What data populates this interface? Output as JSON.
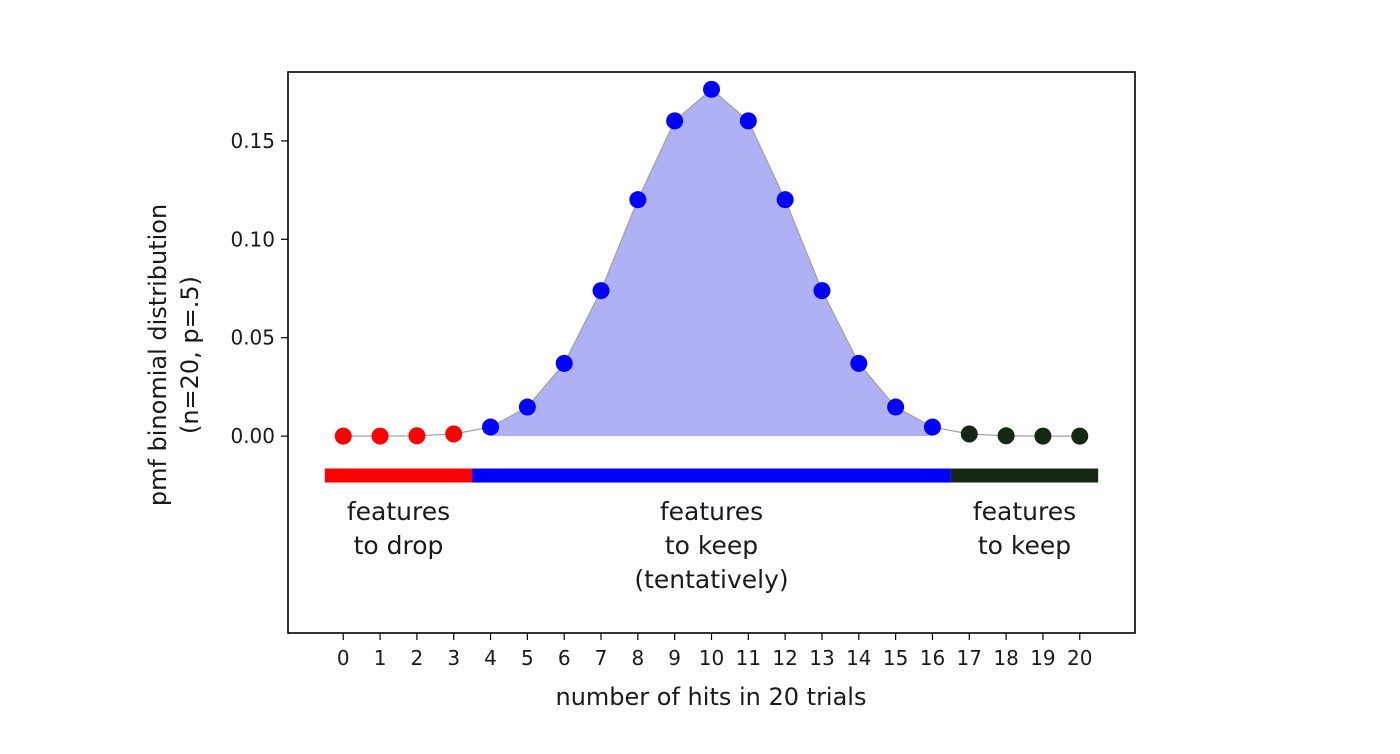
{
  "chart_data": {
    "type": "scatter",
    "title": "",
    "xlabel": "number of hits in 20 trials",
    "ylabel_lines": [
      "pmf binomial distribution",
      "(n=20, p=.5)"
    ],
    "x": [
      0,
      1,
      2,
      3,
      4,
      5,
      6,
      7,
      8,
      9,
      10,
      11,
      12,
      13,
      14,
      15,
      16,
      17,
      18,
      19,
      20
    ],
    "y": [
      1e-06,
      1.9e-05,
      0.000181,
      0.001087,
      0.004621,
      0.014786,
      0.036964,
      0.073929,
      0.120134,
      0.160179,
      0.176197,
      0.160179,
      0.120134,
      0.073929,
      0.036964,
      0.014786,
      0.004621,
      0.001087,
      0.000181,
      1.9e-05,
      1e-06
    ],
    "xticks": [
      "0",
      "1",
      "2",
      "3",
      "4",
      "5",
      "6",
      "7",
      "8",
      "9",
      "10",
      "11",
      "12",
      "13",
      "14",
      "15",
      "16",
      "17",
      "18",
      "19",
      "20"
    ],
    "yticks": [
      "0.00",
      "0.05",
      "0.10",
      "0.15"
    ],
    "ytick_values": [
      0,
      0.05,
      0.1,
      0.15
    ],
    "xlim": [
      -1.5,
      21.5
    ],
    "ylim": [
      -0.1,
      0.185
    ],
    "grid": false,
    "fill_range": [
      4,
      16
    ],
    "fill_color": "#b0b0f5",
    "line_color": "#a0a0a0",
    "zones": [
      {
        "id": "drop",
        "x_range": [
          -0.5,
          3.5
        ],
        "color": "#ff0000",
        "lines": [
          "features",
          "to drop"
        ]
      },
      {
        "id": "tentative",
        "x_range": [
          3.5,
          16.5
        ],
        "color": "#0000ff",
        "lines": [
          "features",
          "to keep",
          "(tentatively)"
        ]
      },
      {
        "id": "keep",
        "x_range": [
          16.5,
          20.5
        ],
        "color": "#142814",
        "lines": [
          "features",
          "to keep"
        ]
      }
    ],
    "bar_y": -0.02
  }
}
